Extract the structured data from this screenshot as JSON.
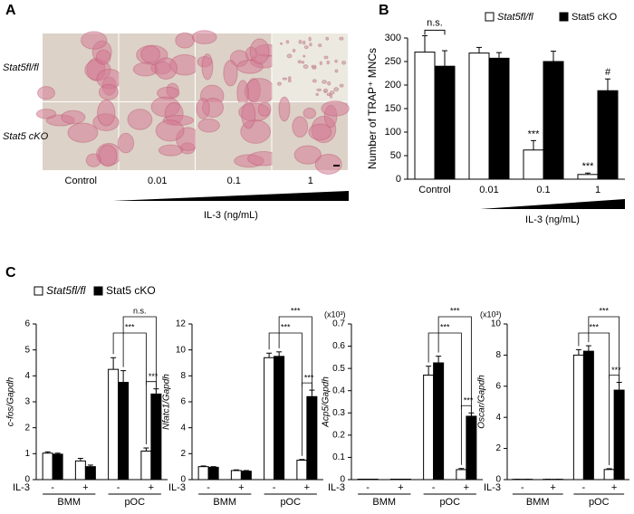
{
  "panel_labels": [
    "A",
    "B",
    "C"
  ],
  "panel_a": {
    "rows": [
      "Stat5fl/fl",
      "Stat5 cKO"
    ],
    "columns": [
      "Control",
      "0.01",
      "0.1",
      "1"
    ],
    "xlabel": "IL-3 (ng/mL)"
  },
  "chart_data": [
    {
      "type": "bar",
      "ylabel": "Number of TRAP⁺ MNCs",
      "xlabel": "IL-3 (ng/mL)",
      "categories": [
        "Control",
        "0.01",
        "0.1",
        "1"
      ],
      "series": [
        {
          "name": "Stat5fl/fl",
          "color": "#ffffff",
          "values": [
            270,
            268,
            62,
            10
          ],
          "errors": [
            35,
            12,
            20,
            3
          ]
        },
        {
          "name": "Stat5 cKO",
          "color": "#000000",
          "values": [
            240,
            257,
            250,
            188
          ],
          "errors": [
            33,
            12,
            22,
            25
          ]
        }
      ],
      "ylim": [
        0,
        300
      ],
      "yticks": [
        0,
        50,
        100,
        150,
        200,
        250,
        300
      ],
      "annotations": [
        "n.s.",
        "***",
        "***",
        "#"
      ]
    },
    {
      "type": "bar",
      "ylabel": "c-fos/Gapdh",
      "xlabel": "IL-3",
      "categories": [
        "-",
        "+",
        "-",
        "+"
      ],
      "groups": [
        "BMM",
        "pOC"
      ],
      "series": [
        {
          "name": "Stat5fl/fl",
          "color": "#ffffff",
          "values": [
            1.02,
            0.72,
            4.25,
            1.1
          ],
          "errors": [
            0.05,
            0.1,
            0.45,
            0.12
          ]
        },
        {
          "name": "Stat5 cKO",
          "color": "#000000",
          "values": [
            0.98,
            0.5,
            3.75,
            3.3
          ],
          "errors": [
            0.04,
            0.06,
            0.45,
            0.2
          ]
        }
      ],
      "ylim": [
        0,
        6
      ],
      "yticks": [
        0,
        1,
        2,
        3,
        4,
        5,
        6
      ],
      "annotations": [
        "n.s.",
        "***",
        "***"
      ]
    },
    {
      "type": "bar",
      "ylabel": "Nfatc1/Gapdh",
      "xlabel": "IL-3",
      "categories": [
        "-",
        "+",
        "-",
        "+"
      ],
      "groups": [
        "BMM",
        "pOC"
      ],
      "series": [
        {
          "color": "#ffffff",
          "values": [
            1.0,
            0.7,
            9.4,
            1.5
          ],
          "errors": [
            0.05,
            0.05,
            0.35,
            0.05
          ]
        },
        {
          "color": "#000000",
          "values": [
            0.95,
            0.65,
            9.5,
            6.4
          ],
          "errors": [
            0.05,
            0.05,
            0.35,
            0.5
          ]
        }
      ],
      "ylim": [
        0,
        12
      ],
      "yticks": [
        0,
        2,
        4,
        6,
        8,
        10,
        12
      ],
      "annotations": [
        "***",
        "***",
        "***"
      ]
    },
    {
      "type": "bar",
      "ylabel": "Acp5/Gapdh",
      "scale_label": "(x10³)",
      "xlabel": "IL-3",
      "categories": [
        "-",
        "+",
        "-",
        "+"
      ],
      "groups": [
        "BMM",
        "pOC"
      ],
      "series": [
        {
          "color": "#ffffff",
          "values": [
            0.002,
            0.002,
            0.47,
            0.045
          ],
          "errors": [
            0,
            0,
            0.04,
            0.005
          ]
        },
        {
          "color": "#000000",
          "values": [
            0.002,
            0.002,
            0.525,
            0.285
          ],
          "errors": [
            0,
            0,
            0.03,
            0.015
          ]
        }
      ],
      "ylim": [
        0,
        0.7
      ],
      "yticks": [
        0,
        0.1,
        0.2,
        0.3,
        0.4,
        0.5,
        0.6,
        0.7
      ],
      "annotations": [
        "***",
        "***",
        "***"
      ]
    },
    {
      "type": "bar",
      "ylabel": "Oscar/Gapdh",
      "scale_label": "(x10³)",
      "xlabel": "IL-3",
      "categories": [
        "-",
        "+",
        "-",
        "+"
      ],
      "groups": [
        "BMM",
        "pOC"
      ],
      "series": [
        {
          "color": "#ffffff",
          "values": [
            0.02,
            0.02,
            8.0,
            0.65
          ],
          "errors": [
            0,
            0,
            0.35,
            0.05
          ]
        },
        {
          "color": "#000000",
          "values": [
            0.02,
            0.02,
            8.25,
            5.75
          ],
          "errors": [
            0,
            0,
            0.35,
            0.5
          ]
        }
      ],
      "ylim": [
        0,
        10
      ],
      "yticks": [
        0,
        2,
        4,
        6,
        8,
        10
      ],
      "annotations": [
        "***",
        "***",
        "***"
      ]
    }
  ]
}
